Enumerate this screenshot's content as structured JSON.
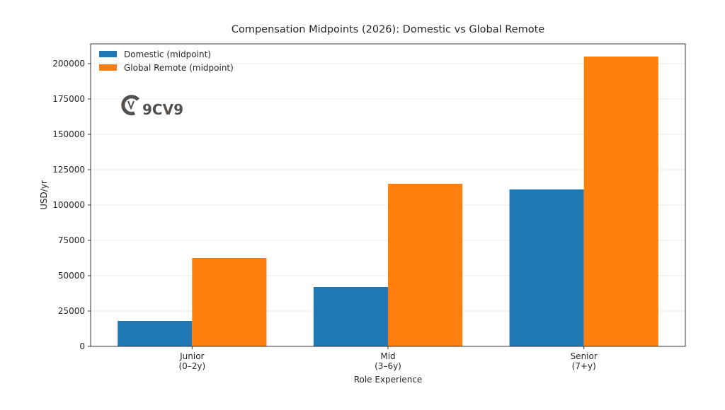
{
  "chart_data": {
    "type": "bar",
    "title": "Compensation Midpoints (2026): Domestic vs Global Remote",
    "xlabel": "Role Experience",
    "ylabel": "USD/yr",
    "categories": [
      "Junior\n(0–2y)",
      "Mid\n(3–6y)",
      "Senior\n(7+y)"
    ],
    "series": [
      {
        "name": "Domestic (midpoint)",
        "color": "#1f77b4",
        "values": [
          18000,
          42000,
          111000
        ]
      },
      {
        "name": "Global Remote (midpoint)",
        "color": "#ff7f0e",
        "values": [
          62500,
          115000,
          205000
        ]
      }
    ],
    "ylim": [
      0,
      214000
    ],
    "yticks": [
      0,
      25000,
      50000,
      75000,
      100000,
      125000,
      150000,
      175000,
      200000
    ],
    "grid": "horizontal",
    "legend": "top-left",
    "watermark": "9CV9"
  }
}
